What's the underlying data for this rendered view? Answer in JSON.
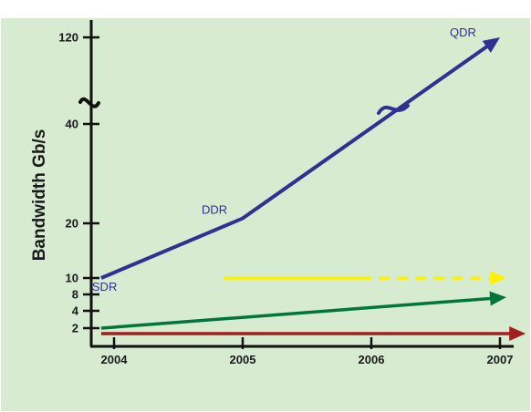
{
  "chart_data": {
    "type": "line",
    "title": "",
    "xlabel": "",
    "ylabel": "Bandwidth Gb/s",
    "background_color": "#d6ebd0",
    "x_ticks": [
      "2004",
      "2005",
      "2006",
      "2007"
    ],
    "y_ticks": [
      "2",
      "4",
      "8",
      "10",
      "20",
      "40",
      "120"
    ],
    "axis_break": "y axis broken between 40 and 120",
    "grid": false,
    "legend": "none",
    "series": [
      {
        "name": "SDR / DDR / QDR",
        "color": "#2e3192",
        "style": "solid",
        "points": [
          {
            "x": 2003.9,
            "y": 10,
            "label": "SDR"
          },
          {
            "x": 2005.0,
            "y": 21,
            "label": "DDR"
          },
          {
            "x": 2007.0,
            "y": 120,
            "label": "QDR"
          }
        ]
      },
      {
        "name": "",
        "color": "#fff200",
        "style": "solid-then-dashed",
        "dash_from_x": 2006.0,
        "points": [
          {
            "x": 2004.85,
            "y": 10
          },
          {
            "x": 2007.05,
            "y": 10
          }
        ]
      },
      {
        "name": "",
        "color": "#00763a",
        "style": "solid",
        "points": [
          {
            "x": 2003.9,
            "y": 2
          },
          {
            "x": 2007.05,
            "y": 7.3
          }
        ]
      },
      {
        "name": "",
        "color": "#a31f1f",
        "style": "solid",
        "points": [
          {
            "x": 2003.9,
            "y": 1
          },
          {
            "x": 2007.2,
            "y": 1
          }
        ]
      }
    ]
  }
}
